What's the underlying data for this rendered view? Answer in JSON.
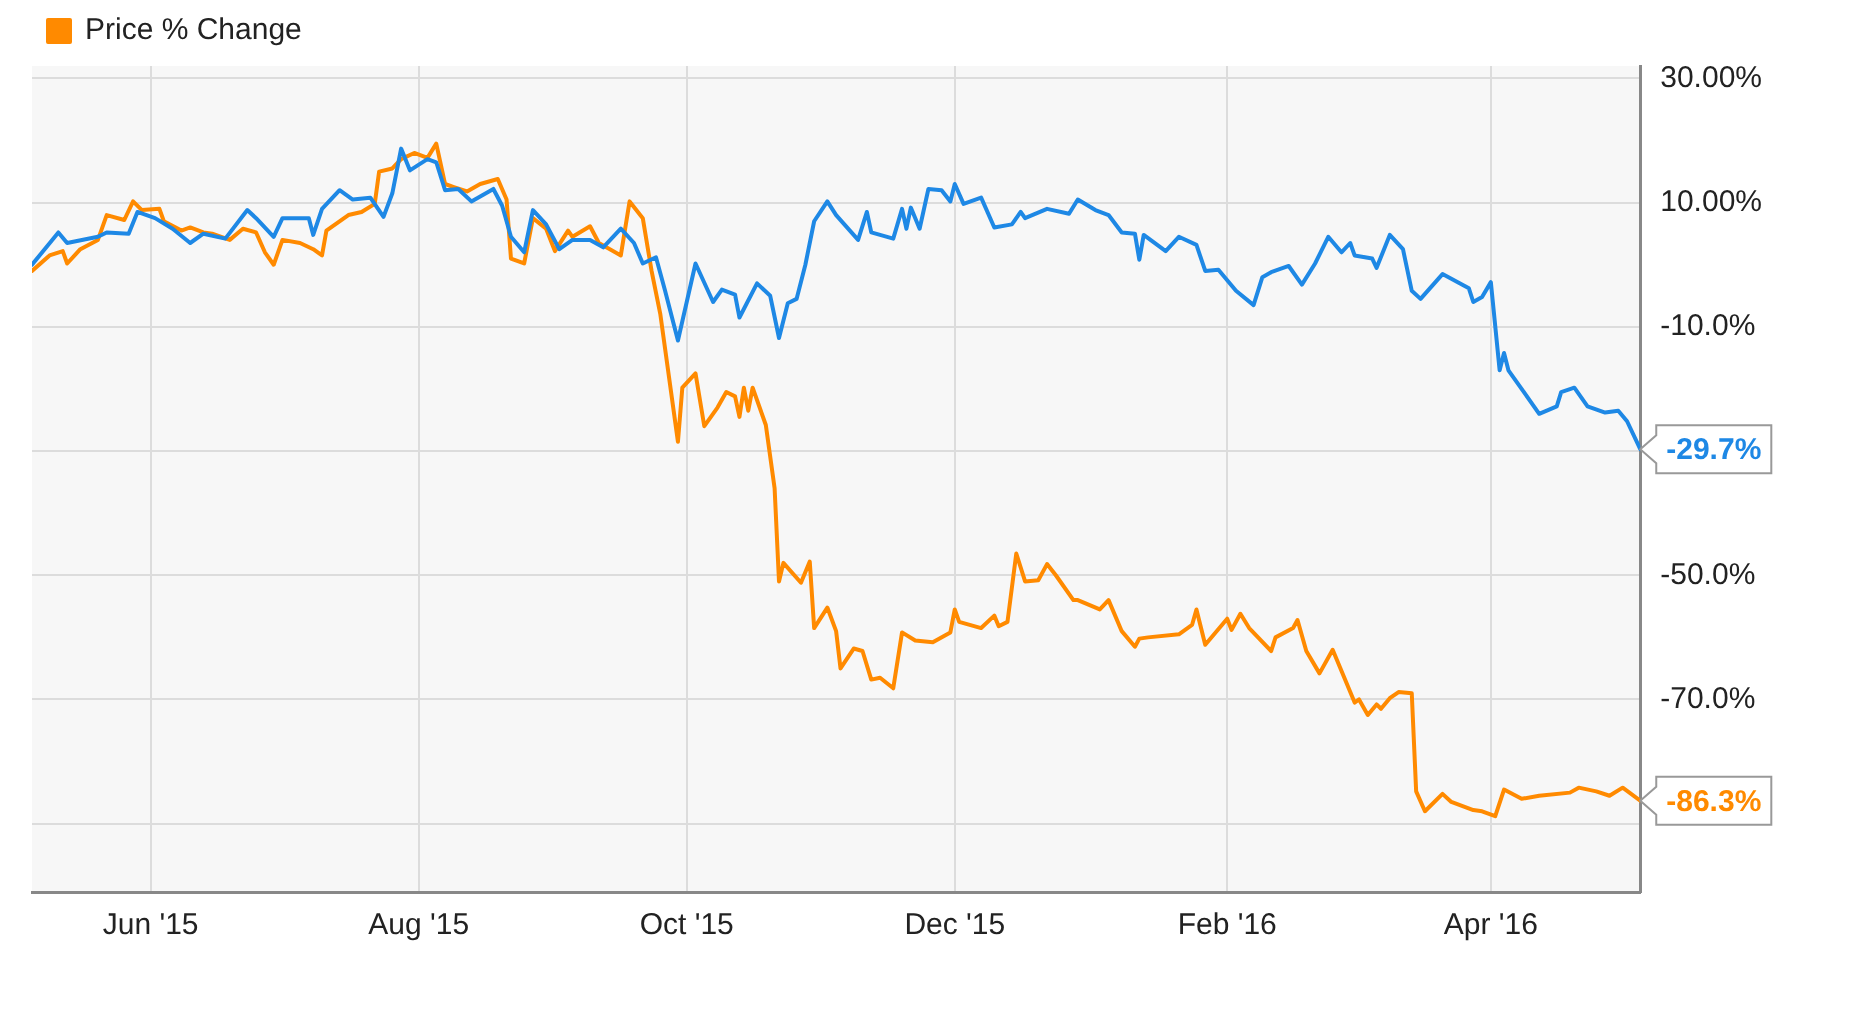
{
  "chart_data": {
    "type": "line",
    "xlim": [
      "2015-05-05",
      "2016-05-05"
    ],
    "xticks": [
      {
        "value": "2015-06-01",
        "label": "Jun '15"
      },
      {
        "value": "2015-08-01",
        "label": "Aug '15"
      },
      {
        "value": "2015-10-01",
        "label": "Oct '15"
      },
      {
        "value": "2015-12-01",
        "label": "Dec '15"
      },
      {
        "value": "2016-02-01",
        "label": "Feb '16"
      },
      {
        "value": "2016-04-01",
        "label": "Apr '16"
      }
    ],
    "ylim": [
      -101,
      32
    ],
    "yticks": [
      {
        "value": 30,
        "label": "30.00%"
      },
      {
        "value": 10,
        "label": "10.00%"
      },
      {
        "value": -10,
        "label": "-10.0%"
      },
      {
        "value": -30,
        "label": null
      },
      {
        "value": -50,
        "label": "-50.0%"
      },
      {
        "value": -70,
        "label": "-70.0%"
      },
      {
        "value": -90,
        "label": null
      }
    ],
    "grid": true,
    "legend": "top left",
    "marker": "none",
    "line_style": "solid",
    "annotations": [
      {
        "text": "-29.7%",
        "x": "2016-05-05",
        "y": -29.7
      },
      {
        "text": "-86.3%",
        "x": "2016-05-05",
        "y": -86.3
      }
    ],
    "series": [
      {
        "color": "#1e88e5",
        "x": [
          "2015-05-05",
          "2015-05-11",
          "2015-05-13",
          "2015-05-20",
          "2015-05-22",
          "2015-05-27",
          "2015-05-29",
          "2015-06-02",
          "2015-06-06",
          "2015-06-10",
          "2015-06-13",
          "2015-06-18",
          "2015-06-23",
          "2015-06-25",
          "2015-06-29",
          "2015-07-01",
          "2015-07-07",
          "2015-07-08",
          "2015-07-10",
          "2015-07-14",
          "2015-07-17",
          "2015-07-21",
          "2015-07-24",
          "2015-07-26",
          "2015-07-28",
          "2015-07-30",
          "2015-08-03",
          "2015-08-05",
          "2015-08-07",
          "2015-08-10",
          "2015-08-13",
          "2015-08-18",
          "2015-08-20",
          "2015-08-22",
          "2015-08-25",
          "2015-08-27",
          "2015-08-30",
          "2015-09-02",
          "2015-09-05",
          "2015-09-09",
          "2015-09-12",
          "2015-09-16",
          "2015-09-19",
          "2015-09-21",
          "2015-09-24",
          "2015-09-26",
          "2015-09-29",
          "2015-10-03",
          "2015-10-07",
          "2015-10-09",
          "2015-10-12",
          "2015-10-13",
          "2015-10-17",
          "2015-10-20",
          "2015-10-22",
          "2015-10-24",
          "2015-10-26",
          "2015-10-28",
          "2015-10-30",
          "2015-11-02",
          "2015-11-04",
          "2015-11-09",
          "2015-11-11",
          "2015-11-12",
          "2015-11-17",
          "2015-11-19",
          "2015-11-20",
          "2015-11-21",
          "2015-11-23",
          "2015-11-25",
          "2015-11-28",
          "2015-11-30",
          "2015-12-01",
          "2015-12-03",
          "2015-12-07",
          "2015-12-10",
          "2015-12-14",
          "2015-12-16",
          "2015-12-17",
          "2015-12-22",
          "2015-12-27",
          "2015-12-29",
          "2016-01-02",
          "2016-01-05",
          "2016-01-08",
          "2016-01-11",
          "2016-01-12",
          "2016-01-13",
          "2016-01-18",
          "2016-01-21",
          "2016-01-25",
          "2016-01-27",
          "2016-01-30",
          "2016-02-03",
          "2016-02-07",
          "2016-02-09",
          "2016-02-11",
          "2016-02-15",
          "2016-02-18",
          "2016-02-21",
          "2016-02-24",
          "2016-02-27",
          "2016-02-29",
          "2016-03-01",
          "2016-03-05",
          "2016-03-06",
          "2016-03-09",
          "2016-03-12",
          "2016-03-14",
          "2016-03-16",
          "2016-03-21",
          "2016-03-27",
          "2016-03-28",
          "2016-03-30",
          "2016-04-01",
          "2016-04-03",
          "2016-04-04",
          "2016-04-05",
          "2016-04-08",
          "2016-04-12",
          "2016-04-16",
          "2016-04-17",
          "2016-04-20",
          "2016-04-23",
          "2016-04-27",
          "2016-04-30",
          "2016-05-02",
          "2016-05-05"
        ],
        "values": [
          0,
          5.2,
          3.5,
          4.5,
          5.2,
          5,
          8.5,
          7.5,
          5.8,
          3.5,
          5,
          4.2,
          8.8,
          7.5,
          4.5,
          7.5,
          7.5,
          4.8,
          9,
          12,
          10.5,
          10.8,
          7.7,
          11.5,
          18.7,
          15.2,
          17,
          16.5,
          12,
          12.2,
          10.2,
          12.2,
          9.5,
          4.5,
          2,
          8.8,
          6.5,
          2.5,
          4,
          4,
          2.8,
          5.8,
          3.5,
          0.2,
          1.2,
          -4,
          -12.2,
          0.2,
          -6,
          -4,
          -4.8,
          -8.5,
          -3,
          -5,
          -11.8,
          -6.2,
          -5.5,
          0,
          7,
          10.2,
          8,
          4,
          8.5,
          5.2,
          4.2,
          9,
          5.8,
          9.2,
          5.8,
          12.2,
          12,
          10.2,
          13,
          9.8,
          10.8,
          6,
          6.5,
          8.5,
          7.5,
          9,
          8.2,
          10.5,
          8.8,
          8,
          5.2,
          5,
          0.8,
          4.8,
          2.2,
          4.5,
          3.2,
          -1,
          -0.8,
          -4.2,
          -6.5,
          -2,
          -1.2,
          -0.2,
          -3.2,
          0.2,
          4.5,
          2,
          3.5,
          1.5,
          1,
          -0.5,
          4.8,
          2.5,
          -4.2,
          -5.5,
          -1.5,
          -3.8,
          -6,
          -5.2,
          -2.8,
          -17,
          -14.2,
          -17,
          -20,
          -24,
          -22.8,
          -20.5,
          -19.8,
          -22.8,
          -23.8,
          -23.5,
          -25.2,
          -29.7
        ]
      },
      {
        "name": "Price % Change",
        "color": "#ff8a00",
        "x": [
          "2015-05-05",
          "2015-05-09",
          "2015-05-12",
          "2015-05-13",
          "2015-05-16",
          "2015-05-20",
          "2015-05-22",
          "2015-05-26",
          "2015-05-28",
          "2015-05-30",
          "2015-06-03",
          "2015-06-04",
          "2015-06-08",
          "2015-06-10",
          "2015-06-13",
          "2015-06-15",
          "2015-06-19",
          "2015-06-22",
          "2015-06-25",
          "2015-06-27",
          "2015-06-29",
          "2015-07-01",
          "2015-07-05",
          "2015-07-08",
          "2015-07-10",
          "2015-07-11",
          "2015-07-16",
          "2015-07-19",
          "2015-07-22",
          "2015-07-23",
          "2015-07-26",
          "2015-07-28",
          "2015-07-31",
          "2015-08-03",
          "2015-08-05",
          "2015-08-07",
          "2015-08-09",
          "2015-08-12",
          "2015-08-15",
          "2015-08-19",
          "2015-08-21",
          "2015-08-22",
          "2015-08-25",
          "2015-08-27",
          "2015-08-30",
          "2015-09-01",
          "2015-09-04",
          "2015-09-05",
          "2015-09-09",
          "2015-09-11",
          "2015-09-16",
          "2015-09-18",
          "2015-09-21",
          "2015-09-23",
          "2015-09-25",
          "2015-09-29",
          "2015-09-30",
          "2015-10-03",
          "2015-10-05",
          "2015-10-08",
          "2015-10-10",
          "2015-10-12",
          "2015-10-13",
          "2015-10-14",
          "2015-10-15",
          "2015-10-16",
          "2015-10-19",
          "2015-10-21",
          "2015-10-22",
          "2015-10-23",
          "2015-10-27",
          "2015-10-29",
          "2015-10-30",
          "2015-11-02",
          "2015-11-04",
          "2015-11-05",
          "2015-11-08",
          "2015-11-10",
          "2015-11-12",
          "2015-11-14",
          "2015-11-17",
          "2015-11-19",
          "2015-11-22",
          "2015-11-26",
          "2015-11-30",
          "2015-12-01",
          "2015-12-02",
          "2015-12-07",
          "2015-12-10",
          "2015-12-11",
          "2015-12-13",
          "2015-12-15",
          "2015-12-17",
          "2015-12-20",
          "2015-12-22",
          "2015-12-24",
          "2015-12-28",
          "2015-12-29",
          "2016-01-03",
          "2016-01-05",
          "2016-01-08",
          "2016-01-11",
          "2016-01-12",
          "2016-01-14",
          "2016-01-21",
          "2016-01-24",
          "2016-01-25",
          "2016-01-27",
          "2016-02-01",
          "2016-02-02",
          "2016-02-04",
          "2016-02-06",
          "2016-02-11",
          "2016-02-12",
          "2016-02-16",
          "2016-02-17",
          "2016-02-19",
          "2016-02-22",
          "2016-02-25",
          "2016-03-01",
          "2016-03-02",
          "2016-03-04",
          "2016-03-06",
          "2016-03-07",
          "2016-03-09",
          "2016-03-11",
          "2016-03-14",
          "2016-03-15",
          "2016-03-17",
          "2016-03-21",
          "2016-03-23",
          "2016-03-28",
          "2016-03-30",
          "2016-04-02",
          "2016-04-04",
          "2016-04-08",
          "2016-04-12",
          "2016-04-19",
          "2016-04-21",
          "2016-04-25",
          "2016-04-28",
          "2016-05-01",
          "2016-05-05"
        ],
        "values": [
          -1,
          1.5,
          2.2,
          0.2,
          2.5,
          4,
          8,
          7.2,
          10.2,
          8.8,
          9,
          7,
          5.5,
          6,
          5.2,
          5,
          4,
          5.8,
          5.2,
          2,
          0,
          4,
          3.5,
          2.5,
          1.5,
          5.5,
          8,
          8.5,
          9.8,
          15,
          15.5,
          17,
          18,
          17.2,
          19.5,
          13,
          12.5,
          11.8,
          13,
          13.8,
          10.5,
          1,
          0.2,
          7.5,
          5.8,
          2.2,
          5.5,
          4.5,
          6.2,
          3.5,
          1.5,
          10.2,
          7.5,
          -1,
          -8,
          -28.5,
          -19.8,
          -17.5,
          -26,
          -23,
          -20.5,
          -21.2,
          -24.5,
          -19.8,
          -23.5,
          -19.8,
          -25.8,
          -36,
          -51,
          -48,
          -51.2,
          -47.8,
          -58.5,
          -55.2,
          -59,
          -65,
          -61.8,
          -62.2,
          -66.8,
          -66.5,
          -68.2,
          -59.2,
          -60.5,
          -60.8,
          -59.2,
          -55.5,
          -57.5,
          -58.5,
          -56.5,
          -58.2,
          -57.5,
          -46.5,
          -51,
          -50.8,
          -48.2,
          -50,
          -54,
          -54,
          -55.5,
          -54,
          -59,
          -61.5,
          -60.2,
          -60,
          -59.5,
          -58,
          -55.5,
          -61.2,
          -57,
          -58.8,
          -56.2,
          -58.5,
          -62.2,
          -60,
          -58.5,
          -57.2,
          -62.2,
          -65.8,
          -62,
          -70.5,
          -70,
          -72.5,
          -70.8,
          -71.5,
          -69.8,
          -68.8,
          -69,
          -84.8,
          -88,
          -85.2,
          -86.5,
          -87.8,
          -88,
          -88.8,
          -84.5,
          -86,
          -85.5,
          -85,
          -84.2,
          -84.8,
          -85.5,
          -84.2,
          -86.3
        ]
      }
    ]
  }
}
